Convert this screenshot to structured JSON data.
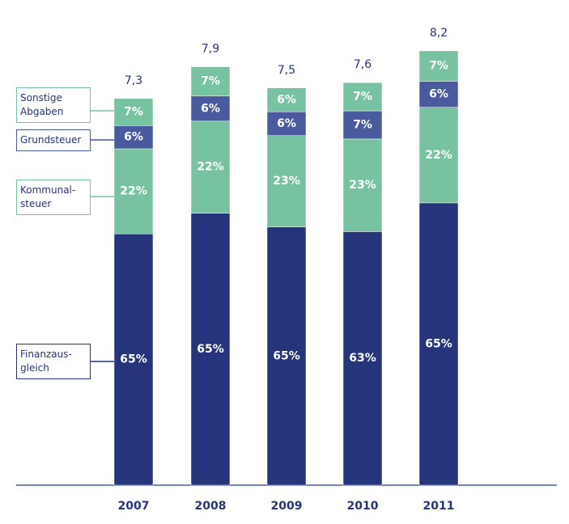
{
  "chart_data": {
    "type": "stacked-bar",
    "categories": [
      "2007",
      "2008",
      "2009",
      "2010",
      "2011"
    ],
    "totals": {
      "values": [
        7.3,
        7.9,
        7.5,
        7.6,
        8.2
      ],
      "value_labels": [
        "7,3",
        "7,9",
        "7,5",
        "7,6",
        "8,2"
      ]
    },
    "series": [
      {
        "name": "Finanzaus-\ngleich",
        "color": "#25347b",
        "values": [
          65,
          65,
          65,
          63,
          65
        ],
        "value_labels": [
          "65%",
          "65%",
          "65%",
          "63%",
          "65%"
        ]
      },
      {
        "name": "Kommunal-\nsteuer",
        "color": "#77c3a1",
        "values": [
          22,
          22,
          23,
          23,
          22
        ],
        "value_labels": [
          "22%",
          "22%",
          "23%",
          "23%",
          "22%"
        ]
      },
      {
        "name": "Grundsteuer",
        "color": "#4a5a9f",
        "values": [
          6,
          6,
          6,
          7,
          6
        ],
        "value_labels": [
          "6%",
          "6%",
          "6%",
          "7%",
          "6%"
        ]
      },
      {
        "name": "Sonstige\nAbgaben",
        "color": "#77c3a1",
        "values": [
          7,
          7,
          6,
          7,
          7
        ],
        "value_labels": [
          "7%",
          "7%",
          "6%",
          "7%",
          "7%"
        ]
      }
    ]
  }
}
